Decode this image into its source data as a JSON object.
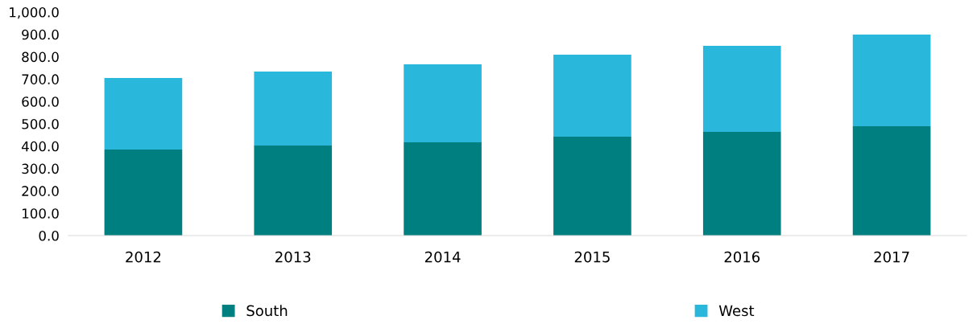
{
  "chart_data": {
    "type": "bar",
    "stacked": true,
    "categories": [
      "2012",
      "2013",
      "2014",
      "2015",
      "2016",
      "2017"
    ],
    "series": [
      {
        "name": "South",
        "color": "#007f80",
        "values": [
          385,
          403,
          417,
          442,
          464,
          489
        ]
      },
      {
        "name": "West",
        "color": "#29b7db",
        "values": [
          320,
          331,
          349,
          367,
          385,
          410
        ]
      }
    ],
    "ylim": [
      0,
      1000
    ],
    "yticks": [
      {
        "value": 0,
        "label": "0.0"
      },
      {
        "value": 100,
        "label": "100.0"
      },
      {
        "value": 200,
        "label": "200.0"
      },
      {
        "value": 300,
        "label": "300.0"
      },
      {
        "value": 400,
        "label": "400.0"
      },
      {
        "value": 500,
        "label": "500.0"
      },
      {
        "value": 600,
        "label": "600.0"
      },
      {
        "value": 700,
        "label": "700.0"
      },
      {
        "value": 800,
        "label": "800.0"
      },
      {
        "value": 900,
        "label": "900.0"
      },
      {
        "value": 1000,
        "label": "1,000.0"
      }
    ],
    "grid": false,
    "legend": "bottom"
  }
}
